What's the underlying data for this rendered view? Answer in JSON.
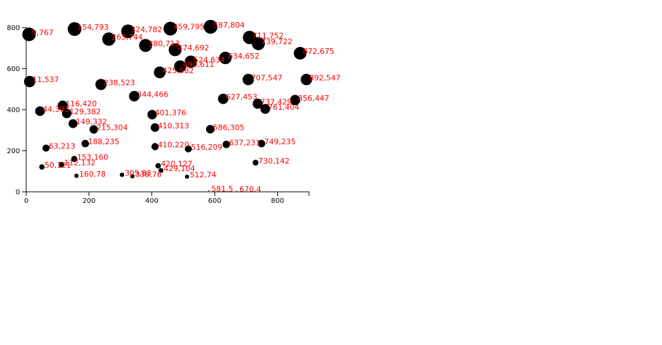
{
  "chart_data": {
    "type": "scatter",
    "title": "",
    "xlabel": "",
    "ylabel": "",
    "xlim": [
      0,
      900
    ],
    "ylim": [
      0,
      800
    ],
    "x_ticks": [
      "0",
      "200",
      "400",
      "600",
      "800"
    ],
    "y_ticks": [
      "0",
      "200",
      "400",
      "600",
      "800"
    ],
    "grid": false,
    "colors": {
      "point": "#000000",
      "label": "#ff0000"
    },
    "points": [
      {
        "x": 9,
        "y": 767,
        "label": "9,767"
      },
      {
        "x": 154,
        "y": 793,
        "label": "154,793"
      },
      {
        "x": 263,
        "y": 744,
        "label": "263,744"
      },
      {
        "x": 324,
        "y": 782,
        "label": "324,782"
      },
      {
        "x": 380,
        "y": 713,
        "label": "380,713"
      },
      {
        "x": 459,
        "y": 795,
        "label": "459,795"
      },
      {
        "x": 474,
        "y": 692,
        "label": "474,692"
      },
      {
        "x": 587,
        "y": 804,
        "label": "587,804"
      },
      {
        "x": 711,
        "y": 752,
        "label": "711,752"
      },
      {
        "x": 739,
        "y": 722,
        "label": "739,722"
      },
      {
        "x": 872,
        "y": 675,
        "label": "872,675"
      },
      {
        "x": 634,
        "y": 652,
        "label": "634,652"
      },
      {
        "x": 524,
        "y": 634,
        "label": "524,634"
      },
      {
        "x": 490,
        "y": 611,
        "label": "490,611"
      },
      {
        "x": 425,
        "y": 582,
        "label": "425,582"
      },
      {
        "x": 11,
        "y": 537,
        "label": "11,537"
      },
      {
        "x": 238,
        "y": 523,
        "label": "238,523"
      },
      {
        "x": 707,
        "y": 547,
        "label": "707,547"
      },
      {
        "x": 892,
        "y": 547,
        "label": "892,547"
      },
      {
        "x": 344,
        "y": 466,
        "label": "344,466"
      },
      {
        "x": 627,
        "y": 453,
        "label": "627,453"
      },
      {
        "x": 737,
        "y": 429,
        "label": "737,429"
      },
      {
        "x": 761,
        "y": 404,
        "label": "761,404"
      },
      {
        "x": 856,
        "y": 447,
        "label": "856,447"
      },
      {
        "x": 116,
        "y": 420,
        "label": "116,420"
      },
      {
        "x": 44,
        "y": 393,
        "label": "44,393"
      },
      {
        "x": 129,
        "y": 382,
        "label": "129,382"
      },
      {
        "x": 401,
        "y": 376,
        "label": "401,376"
      },
      {
        "x": 149,
        "y": 332,
        "label": "149,332"
      },
      {
        "x": 215,
        "y": 304,
        "label": "215,304"
      },
      {
        "x": 410,
        "y": 313,
        "label": "410,313"
      },
      {
        "x": 586,
        "y": 305,
        "label": "586,305"
      },
      {
        "x": 188,
        "y": 235,
        "label": "188,235"
      },
      {
        "x": 63,
        "y": 213,
        "label": "63,213"
      },
      {
        "x": 410,
        "y": 220,
        "label": "410,220"
      },
      {
        "x": 516,
        "y": 209,
        "label": "516,209"
      },
      {
        "x": 637,
        "y": 231,
        "label": "637,231"
      },
      {
        "x": 749,
        "y": 235,
        "label": "749,235"
      },
      {
        "x": 153,
        "y": 160,
        "label": "153,160"
      },
      {
        "x": 112,
        "y": 132,
        "label": "112,132"
      },
      {
        "x": 50,
        "y": 121,
        "label": "50,121"
      },
      {
        "x": 420,
        "y": 127,
        "label": "420,127"
      },
      {
        "x": 429,
        "y": 104,
        "label": "429,104"
      },
      {
        "x": 730,
        "y": 142,
        "label": "730,142"
      },
      {
        "x": 160,
        "y": 78,
        "label": "160,78"
      },
      {
        "x": 305,
        "y": 83,
        "label": "305,83"
      },
      {
        "x": 338,
        "y": 76,
        "label": "338,76"
      },
      {
        "x": 512,
        "y": 74,
        "label": "512,74"
      },
      {
        "x": 581,
        "y": 5,
        "label": "581,5"
      },
      {
        "x": 670,
        "y": 4,
        "label": "670,4"
      }
    ]
  }
}
